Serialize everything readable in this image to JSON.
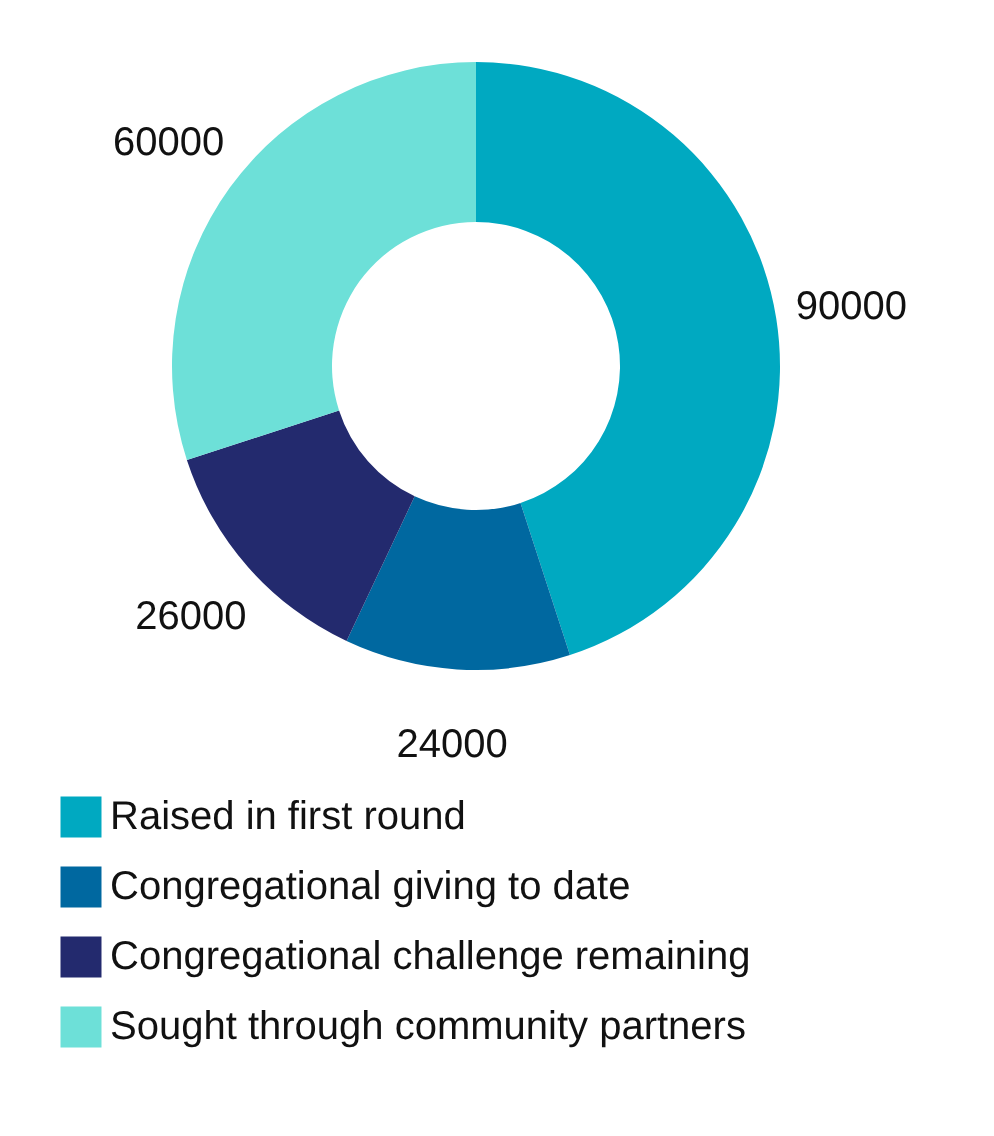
{
  "chart_data": {
    "type": "donut",
    "categories": [
      "Raised in first round",
      "Congregational giving to date",
      "Congregational challenge remaining",
      "Sought through community partners"
    ],
    "values": [
      90000,
      24000,
      26000,
      60000
    ],
    "colors": [
      "#00a9c1",
      "#0068a0",
      "#232a6e",
      "#6de0d8"
    ],
    "data_labels": true,
    "legend": "bottom"
  }
}
